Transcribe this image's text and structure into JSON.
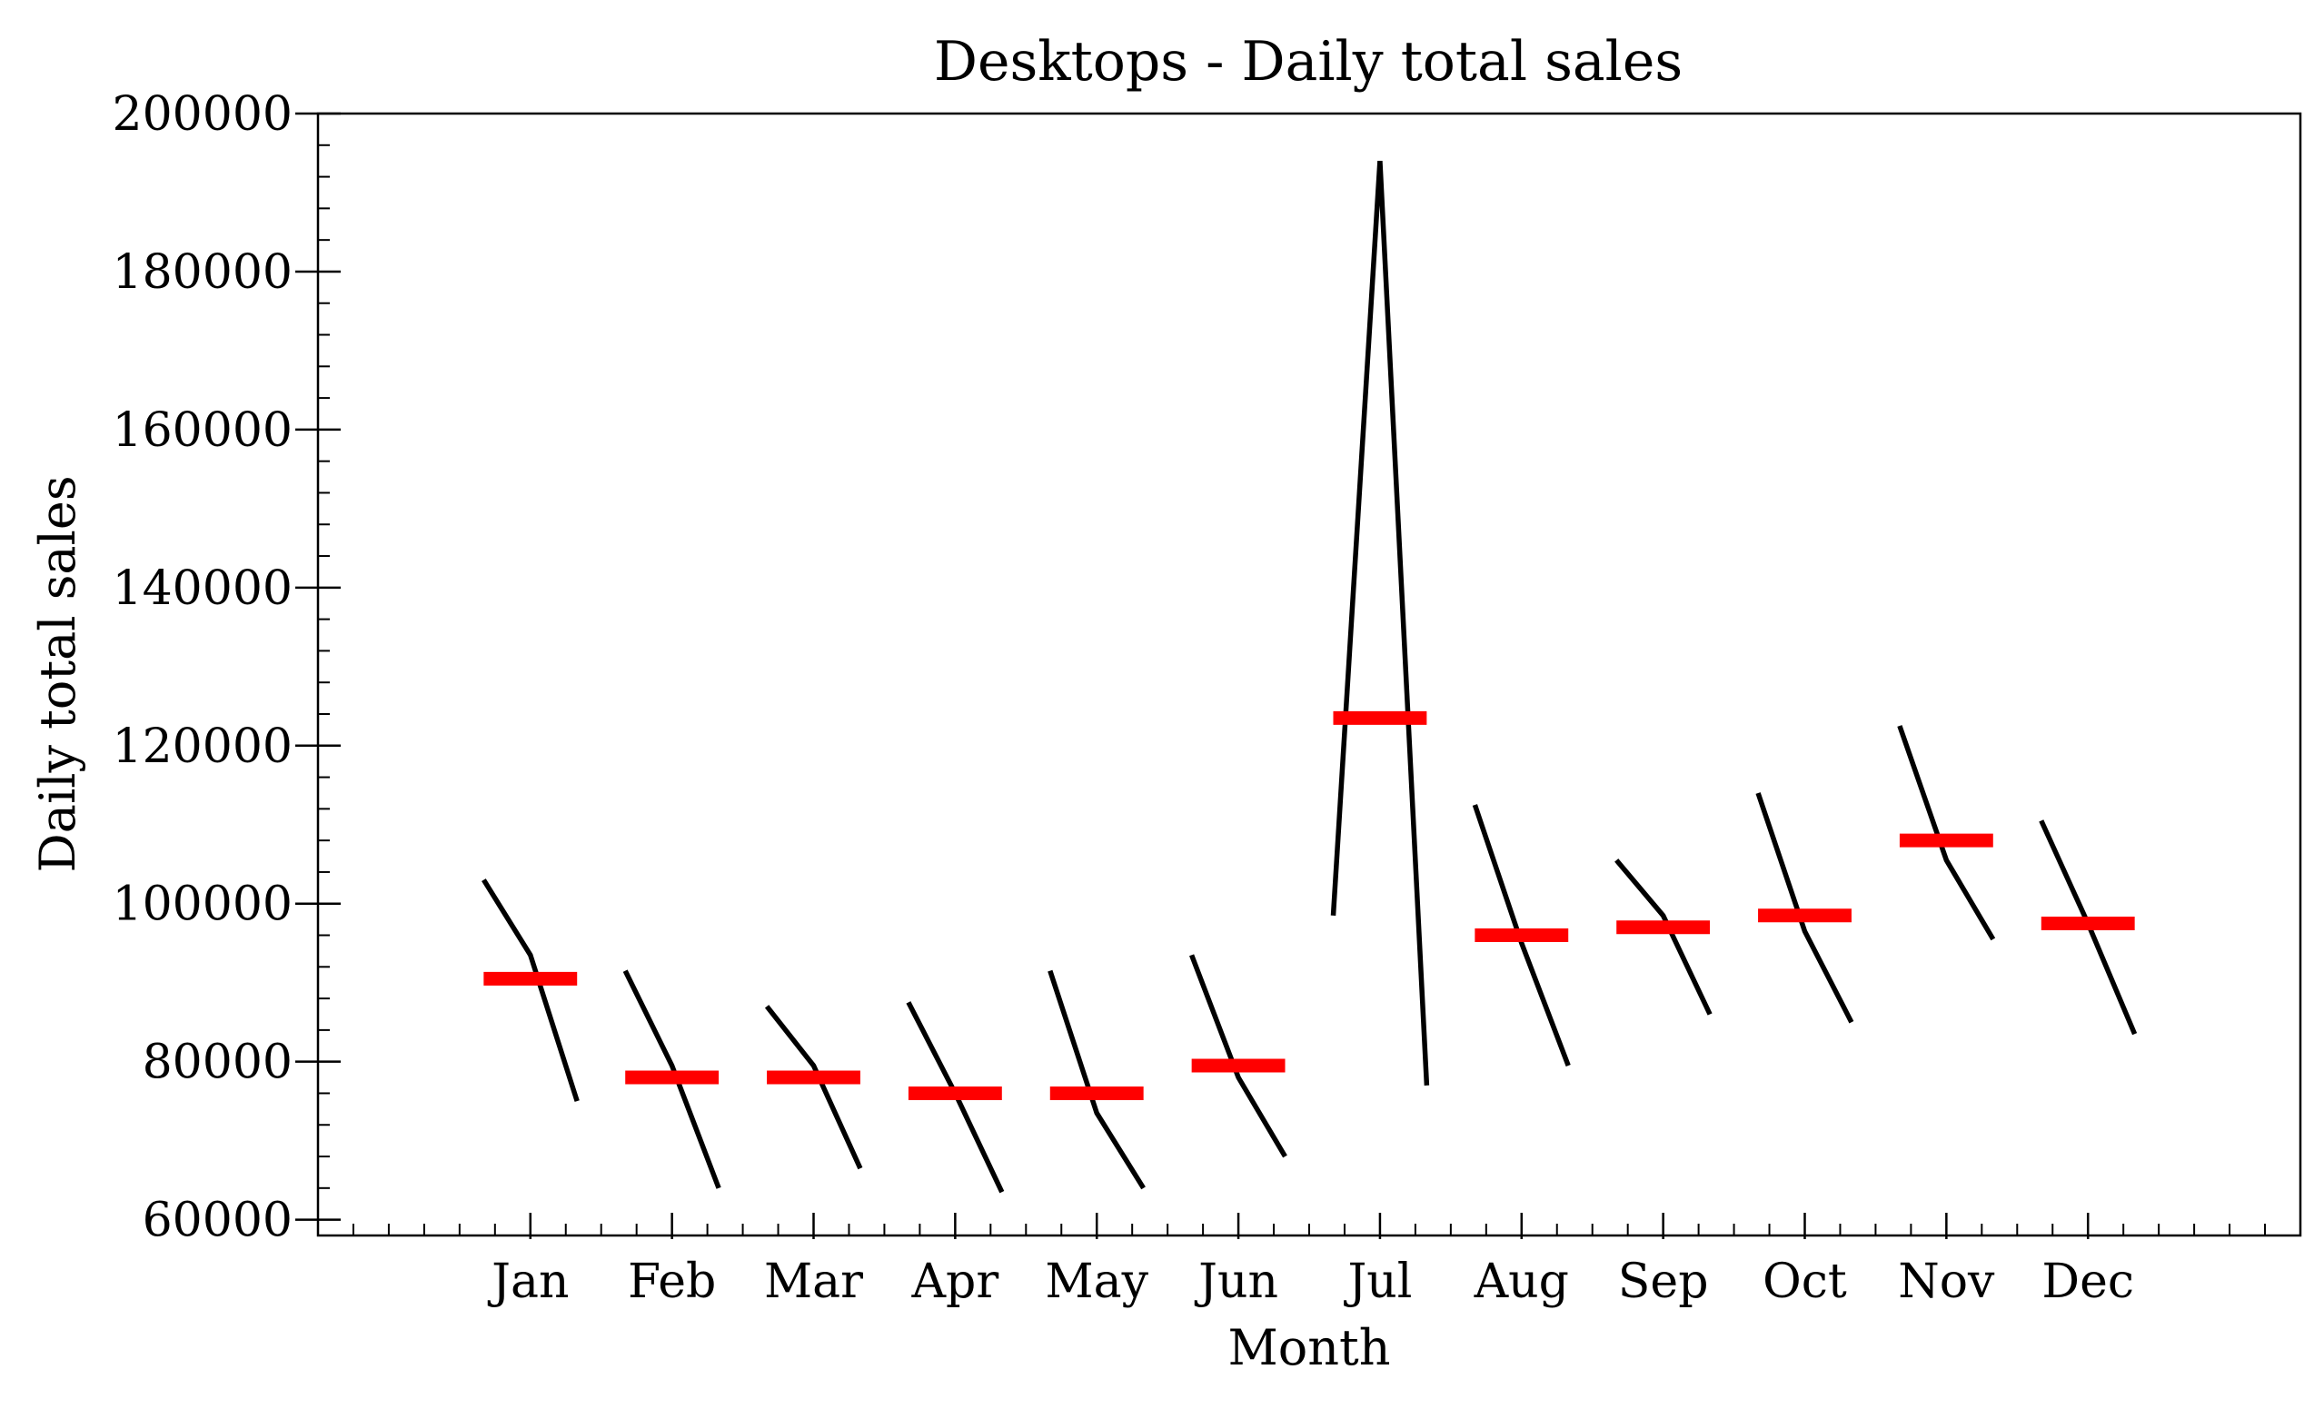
{
  "chart_data": {
    "type": "line",
    "title": "Desktops - Daily total sales",
    "xlabel": "Month",
    "ylabel": "Daily total sales",
    "categories": [
      "Jan",
      "Feb",
      "Mar",
      "Apr",
      "May",
      "Jun",
      "Jul",
      "Aug",
      "Sep",
      "Oct",
      "Nov",
      "Dec"
    ],
    "ylim": [
      58000,
      200000
    ],
    "yticks": [
      60000,
      80000,
      100000,
      120000,
      140000,
      160000,
      180000,
      200000
    ],
    "ytick_labels": [
      "60000",
      "80000",
      "100000",
      "120000",
      "140000",
      "160000",
      "180000",
      "200000"
    ],
    "xlim": [
      -1.5,
      12.5
    ],
    "grid": false,
    "series": [
      {
        "values": [
          [
            103000,
            93500,
            75000
          ],
          [
            91500,
            79500,
            64000
          ],
          [
            87000,
            79500,
            66500
          ],
          [
            87500,
            76000,
            63500
          ],
          [
            91500,
            73500,
            64000
          ],
          [
            93500,
            78000,
            68000
          ],
          [
            98500,
            194000,
            77000
          ],
          [
            112500,
            95000,
            79500
          ],
          [
            105500,
            98500,
            86000
          ],
          [
            114000,
            96500,
            85000
          ],
          [
            122500,
            105500,
            95500
          ],
          [
            110500,
            97500,
            83500
          ]
        ]
      }
    ],
    "means": [
      90500,
      78000,
      78000,
      76000,
      76000,
      79500,
      123500,
      96000,
      97000,
      98500,
      108000,
      97500
    ],
    "colors": {
      "series_line": "#000000",
      "mean_marker": "#ff0000",
      "axes": "#000000",
      "background": "#ffffff"
    }
  }
}
